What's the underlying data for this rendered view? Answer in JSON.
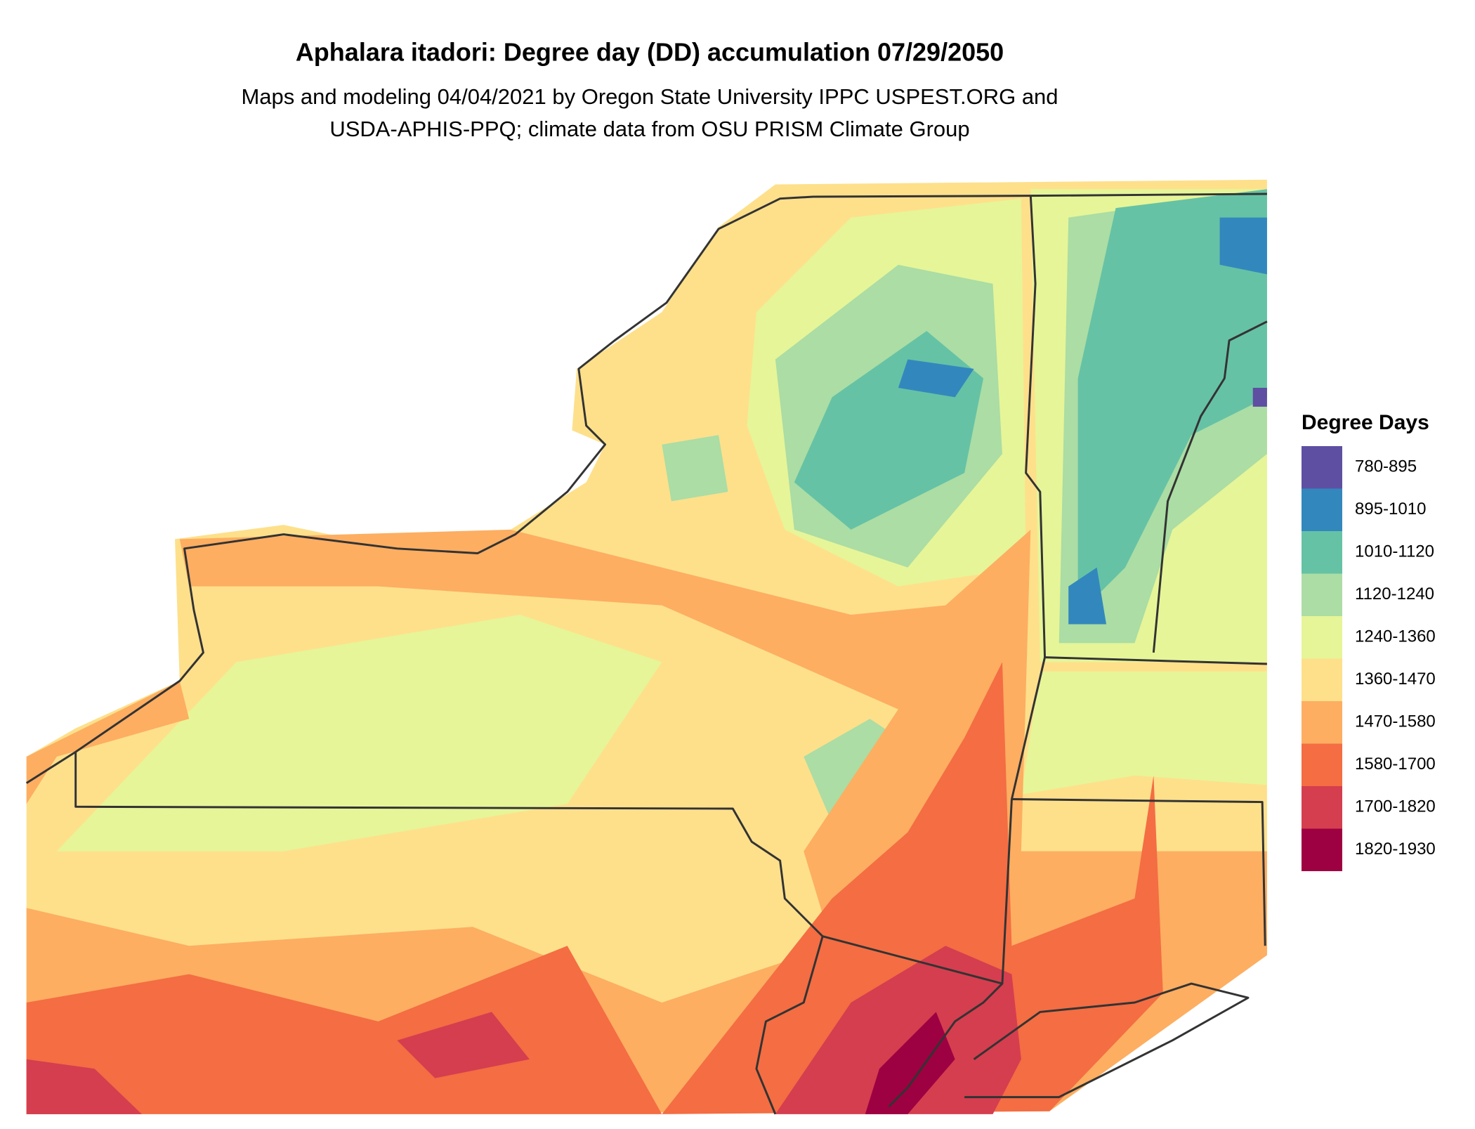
{
  "title": "Aphalara itadori: Degree day (DD) accumulation 07/29/2050",
  "subtitle": [
    "Maps and modeling 04/04/2021 by Oregon State University IPPC USPEST.ORG and",
    "USDA-APHIS-PPQ; climate data from OSU PRISM Climate Group"
  ],
  "legend": {
    "title": "Degree Days",
    "entries": [
      {
        "label": "780-895",
        "color": "#5e4fa2"
      },
      {
        "label": "895-1010",
        "color": "#3288bd"
      },
      {
        "label": "1010-1120",
        "color": "#66c2a5"
      },
      {
        "label": "1120-1240",
        "color": "#abdda4"
      },
      {
        "label": "1240-1360",
        "color": "#e6f598"
      },
      {
        "label": "1360-1470",
        "color": "#fee08b"
      },
      {
        "label": "1470-1580",
        "color": "#fdae61"
      },
      {
        "label": "1580-1700",
        "color": "#f46d43"
      },
      {
        "label": "1700-1820",
        "color": "#d53e4f"
      },
      {
        "label": "1820-1930",
        "color": "#9e0142"
      }
    ]
  }
}
